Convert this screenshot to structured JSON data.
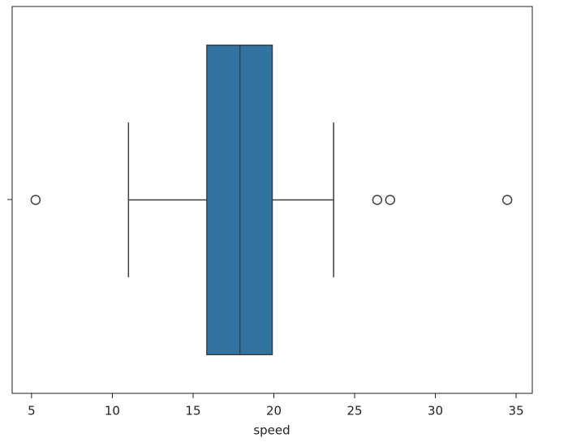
{
  "chart_data": {
    "type": "box",
    "xlabel": "speed",
    "categories": [
      null
    ],
    "boxes": [
      {
        "whislo": 11.0,
        "q1": 15.85,
        "med": 17.9,
        "q3": 19.9,
        "whishi": 23.7,
        "fliers": [
          5.25,
          26.4,
          27.2,
          34.45
        ]
      }
    ],
    "color": "#3274a1",
    "xlim": [
      3.8,
      36.0
    ],
    "xticks": [
      5,
      10,
      15,
      20,
      25,
      30,
      35
    ]
  }
}
